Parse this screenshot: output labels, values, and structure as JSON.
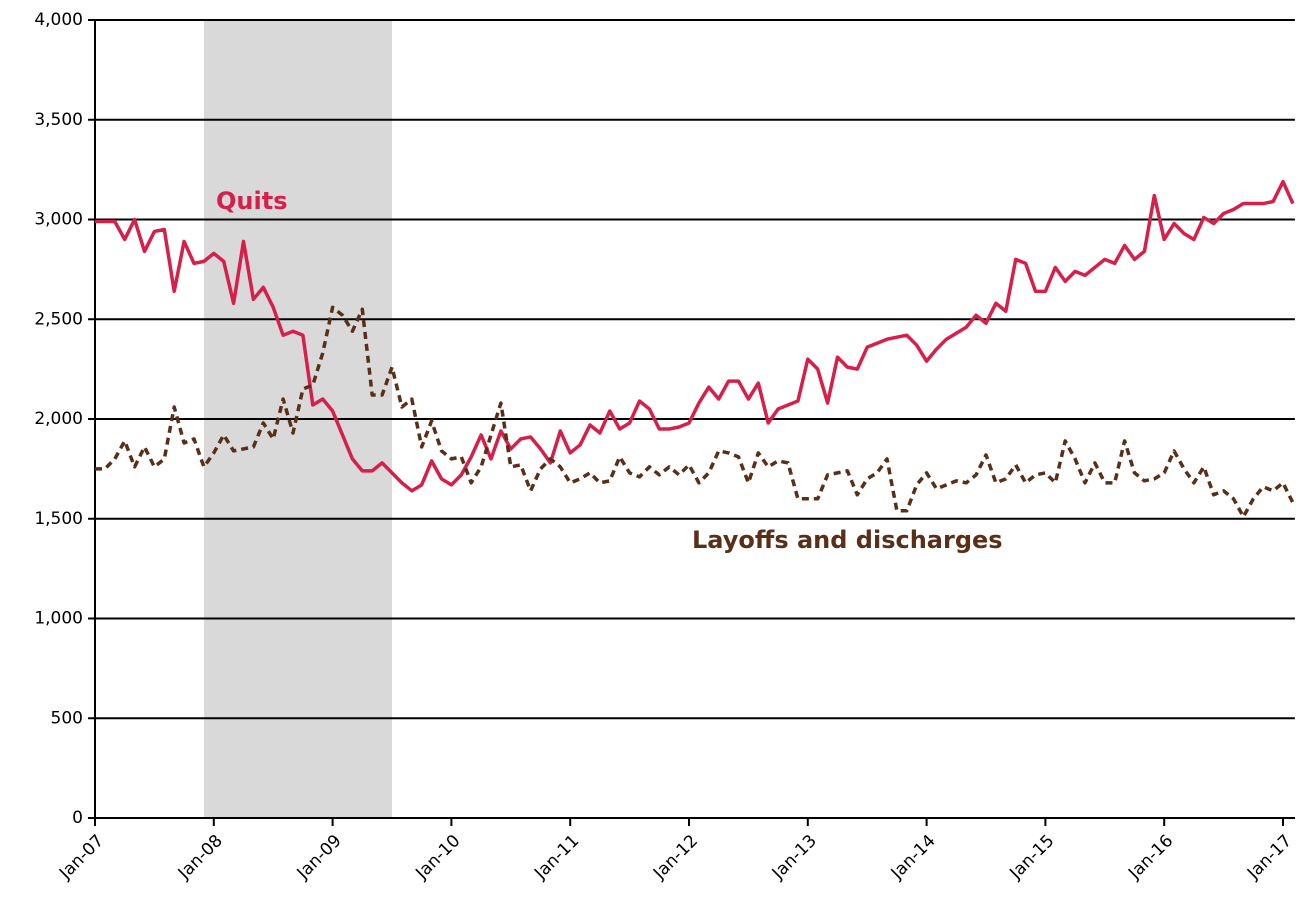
{
  "chart_data": {
    "type": "line",
    "categories": [
      "Jan-07",
      null,
      null,
      null,
      null,
      null,
      null,
      null,
      null,
      null,
      null,
      null,
      "Jan-08",
      null,
      null,
      null,
      null,
      null,
      null,
      null,
      null,
      null,
      null,
      null,
      "Jan-09",
      null,
      null,
      null,
      null,
      null,
      null,
      null,
      null,
      null,
      null,
      null,
      "Jan-10",
      null,
      null,
      null,
      null,
      null,
      null,
      null,
      null,
      null,
      null,
      null,
      "Jan-11",
      null,
      null,
      null,
      null,
      null,
      null,
      null,
      null,
      null,
      null,
      null,
      "Jan-12",
      null,
      null,
      null,
      null,
      null,
      null,
      null,
      null,
      null,
      null,
      null,
      "Jan-13",
      null,
      null,
      null,
      null,
      null,
      null,
      null,
      null,
      null,
      null,
      null,
      "Jan-14",
      null,
      null,
      null,
      null,
      null,
      null,
      null,
      null,
      null,
      null,
      null,
      "Jan-15",
      null,
      null,
      null,
      null,
      null,
      null,
      null,
      null,
      null,
      null,
      null,
      "Jan-16",
      null,
      null,
      null,
      null,
      null,
      null,
      null,
      null,
      null,
      null,
      null,
      "Jan-17",
      null
    ],
    "series": [
      {
        "name": "Quits",
        "color": "#d6204a",
        "dashed": false,
        "values": [
          2990,
          2990,
          2990,
          2900,
          3000,
          2840,
          2940,
          2950,
          2640,
          2890,
          2780,
          2790,
          2830,
          2790,
          2580,
          2890,
          2600,
          2660,
          2560,
          2420,
          2440,
          2420,
          2070,
          2100,
          2040,
          1920,
          1800,
          1740,
          1740,
          1780,
          1730,
          1680,
          1640,
          1670,
          1790,
          1700,
          1670,
          1720,
          1810,
          1920,
          1800,
          1940,
          1850,
          1900,
          1910,
          1850,
          1780,
          1940,
          1830,
          1870,
          1970,
          1930,
          2040,
          1950,
          1980,
          2090,
          2050,
          1950,
          1950,
          1960,
          1980,
          2080,
          2160,
          2100,
          2190,
          2190,
          2100,
          2180,
          1980,
          2050,
          2070,
          2090,
          2300,
          2250,
          2080,
          2310,
          2260,
          2250,
          2360,
          2380,
          2400,
          2410,
          2420,
          2370,
          2290,
          2350,
          2400,
          2430,
          2460,
          2520,
          2480,
          2580,
          2540,
          2800,
          2780,
          2640,
          2640,
          2760,
          2690,
          2740,
          2720,
          2760,
          2800,
          2780,
          2870,
          2800,
          2840,
          3120,
          2900,
          2980,
          2930,
          2900,
          3010,
          2980,
          3030,
          3050,
          3080,
          3080,
          3080,
          3090,
          3190,
          3080
        ]
      },
      {
        "name": "Layoffs and discharges",
        "color": "#5a2f17",
        "dashed": true,
        "values": [
          1750,
          1750,
          1800,
          1890,
          1760,
          1860,
          1760,
          1800,
          2060,
          1880,
          1900,
          1760,
          1830,
          1920,
          1840,
          1850,
          1860,
          1980,
          1900,
          2100,
          1930,
          2150,
          2170,
          2330,
          2560,
          2520,
          2440,
          2550,
          2120,
          2120,
          2260,
          2060,
          2100,
          1860,
          1990,
          1840,
          1800,
          1810,
          1680,
          1760,
          1920,
          2080,
          1760,
          1770,
          1640,
          1750,
          1800,
          1760,
          1680,
          1700,
          1730,
          1680,
          1690,
          1810,
          1730,
          1710,
          1760,
          1720,
          1760,
          1720,
          1770,
          1680,
          1730,
          1840,
          1830,
          1810,
          1680,
          1830,
          1760,
          1790,
          1780,
          1600,
          1600,
          1600,
          1720,
          1730,
          1740,
          1620,
          1700,
          1730,
          1800,
          1540,
          1540,
          1670,
          1730,
          1650,
          1670,
          1690,
          1680,
          1720,
          1820,
          1680,
          1700,
          1770,
          1680,
          1720,
          1730,
          1680,
          1890,
          1800,
          1680,
          1780,
          1680,
          1680,
          1890,
          1730,
          1690,
          1700,
          1730,
          1840,
          1750,
          1680,
          1760,
          1620,
          1640,
          1600,
          1510,
          1600,
          1660,
          1640,
          1680,
          1580
        ]
      }
    ],
    "shaded_ranges": [
      {
        "start": 11,
        "end": 30,
        "color": "#d9d9d9"
      }
    ],
    "ylim": [
      0,
      4000
    ],
    "yticks": [
      0,
      500,
      {
        "value": 1000,
        "label": "1,000"
      },
      {
        "value": 1500,
        "label": "1,500"
      },
      {
        "value": 2000,
        "label": "2,000"
      },
      {
        "value": 2500,
        "label": "2,500"
      },
      {
        "value": 3000,
        "label": "3,000"
      },
      {
        "value": 3500,
        "label": "3,500"
      },
      {
        "value": 4000,
        "label": "4,000"
      }
    ],
    "grid": true
  }
}
